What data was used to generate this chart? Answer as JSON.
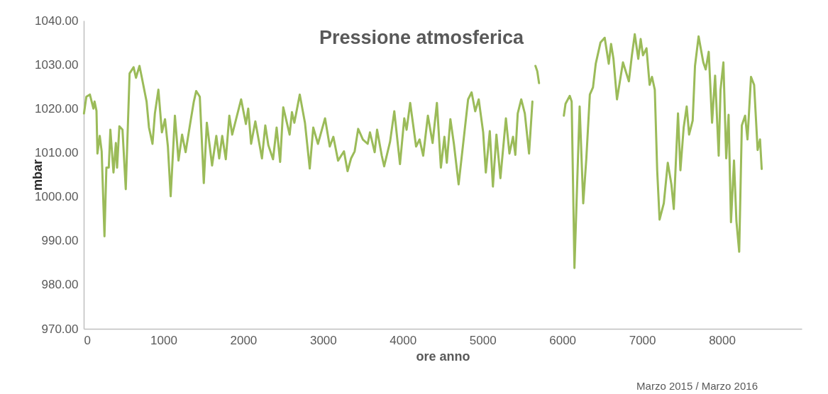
{
  "chart_data": {
    "type": "line",
    "title": "Pressione atmosferica",
    "xlabel": "ore anno",
    "ylabel": "mbar",
    "annotations": [
      "Marzo 2015 / Marzo 2016"
    ],
    "xlim": [
      0,
      9000
    ],
    "xticks": [
      0,
      1000,
      2000,
      3000,
      4000,
      5000,
      6000,
      7000,
      8000
    ],
    "ylim": [
      970,
      1040
    ],
    "yticks": [
      {
        "value": 970,
        "label": "970.00"
      },
      {
        "value": 980,
        "label": "980.00"
      },
      {
        "value": 990,
        "label": "990.00"
      },
      {
        "value": 1000,
        "label": "1000.00"
      },
      {
        "value": 1010,
        "label": "1010.00"
      },
      {
        "value": 1020,
        "label": "1020.00"
      },
      {
        "value": 1030,
        "label": "1030.00"
      },
      {
        "value": 1040,
        "label": "1040.00"
      }
    ],
    "grid": false,
    "series": [
      {
        "color": "#9bbb59",
        "x": [
          3,
          33,
          77,
          122,
          136,
          160,
          172,
          201,
          225,
          260,
          284,
          314,
          334,
          373,
          403,
          418,
          447,
          486,
          527,
          575,
          625,
          655,
          699,
          729,
          788,
          818,
          862,
          892,
          936,
          980,
          1019,
          1055,
          1090,
          1143,
          1188,
          1233,
          1277,
          1336,
          1380,
          1410,
          1455,
          1505,
          1543,
          1609,
          1662,
          1698,
          1736,
          1781,
          1825,
          1861,
          1973,
          2033,
          2062,
          2098,
          2151,
          2234,
          2276,
          2314,
          2373,
          2418,
          2462,
          2501,
          2581,
          2610,
          2640,
          2708,
          2773,
          2833,
          2877,
          2936,
          3025,
          3084,
          3129,
          3188,
          3262,
          3307,
          3351,
          3396,
          3440,
          3499,
          3559,
          3588,
          3647,
          3677,
          3736,
          3766,
          3840,
          3893,
          3964,
          4018,
          4047,
          4092,
          4166,
          4210,
          4255,
          4314,
          4373,
          4427,
          4477,
          4521,
          4551,
          4596,
          4640,
          4699,
          4759,
          4818,
          4862,
          4907,
          4951,
          5007,
          5040,
          5090,
          5129,
          5173,
          5223,
          5292,
          5336,
          5381,
          5410,
          5440,
          5484,
          5529,
          5582,
          5624,
          5640,
          5662,
          5685,
          5707,
          5850,
          6018,
          6039,
          6092,
          6116,
          6151,
          6216,
          6261,
          6300,
          6344,
          6383,
          6418,
          6477,
          6530,
          6581,
          6610,
          6640,
          6684,
          6759,
          6833,
          6871,
          6907,
          6951,
          6981,
          7010,
          7054,
          7093,
          7123,
          7158,
          7188,
          7218,
          7271,
          7321,
          7366,
          7396,
          7449,
          7479,
          7520,
          7558,
          7588,
          7633,
          7662,
          7707,
          7766,
          7796,
          7834,
          7876,
          7914,
          7959,
          7982,
          8018,
          8053,
          8083,
          8113,
          8151,
          8181,
          8216,
          8249,
          8290,
          8320,
          8364,
          8403,
          8447,
          8477,
          8498
        ],
        "values": [
          1018.9,
          1022.7,
          1023.2,
          1020.0,
          1021.6,
          1019.5,
          1009.8,
          1013.8,
          1010.3,
          991.0,
          1006.6,
          1006.6,
          1015.2,
          1005.5,
          1012.2,
          1006.6,
          1016.0,
          1015.2,
          1001.7,
          1028.0,
          1029.4,
          1027.0,
          1029.7,
          1027.0,
          1021.6,
          1015.7,
          1012.0,
          1018.9,
          1024.3,
          1014.6,
          1017.6,
          1011.4,
          1000.1,
          1018.4,
          1008.2,
          1014.1,
          1010.1,
          1016.8,
          1021.6,
          1024.0,
          1022.7,
          1003.1,
          1016.8,
          1007.1,
          1013.8,
          1008.7,
          1013.8,
          1008.5,
          1018.4,
          1014.1,
          1022.1,
          1016.5,
          1020.0,
          1012.0,
          1017.1,
          1008.7,
          1016.2,
          1011.7,
          1008.5,
          1015.7,
          1007.9,
          1020.3,
          1014.1,
          1019.2,
          1016.8,
          1023.2,
          1016.8,
          1006.4,
          1015.7,
          1012.0,
          1017.8,
          1011.4,
          1013.6,
          1008.2,
          1010.3,
          1005.8,
          1008.7,
          1010.3,
          1015.4,
          1013.0,
          1012.0,
          1014.6,
          1010.1,
          1015.2,
          1009.3,
          1006.9,
          1012.5,
          1019.4,
          1007.4,
          1017.8,
          1015.2,
          1021.3,
          1011.4,
          1013.0,
          1009.3,
          1018.4,
          1012.2,
          1021.3,
          1006.6,
          1013.6,
          1007.7,
          1017.6,
          1012.0,
          1002.8,
          1012.5,
          1022.1,
          1023.7,
          1019.4,
          1022.1,
          1014.6,
          1005.5,
          1014.9,
          1002.3,
          1014.1,
          1004.2,
          1017.8,
          1009.8,
          1013.6,
          1009.5,
          1018.9,
          1022.1,
          1018.9,
          1009.8,
          1021.6,
          null,
          1029.7,
          1028.5,
          1025.8,
          null,
          1018.4,
          1021.1,
          1022.9,
          1021.6,
          983.8,
          1020.5,
          998.5,
          1008.7,
          1023.2,
          1024.8,
          1030.2,
          1035.0,
          1036.1,
          1030.2,
          1034.7,
          1031.3,
          1022.1,
          1030.5,
          1026.2,
          1032.1,
          1036.9,
          1031.3,
          1035.8,
          1032.1,
          1033.7,
          1025.4,
          1027.2,
          1024.3,
          1006.0,
          994.8,
          998.5,
          1007.7,
          1002.8,
          997.2,
          1018.9,
          1006.0,
          1015.7,
          1020.5,
          1014.1,
          1017.3,
          1029.7,
          1036.4,
          1030.5,
          1028.9,
          1032.9,
          1016.8,
          1027.5,
          1009.3,
          1024.3,
          1030.5,
          1008.7,
          1018.6,
          994.2,
          1008.2,
          994.5,
          987.5,
          1016.2,
          1018.4,
          1013.0,
          1027.2,
          1025.4,
          1010.6,
          1013.0,
          1006.3
        ]
      }
    ]
  }
}
